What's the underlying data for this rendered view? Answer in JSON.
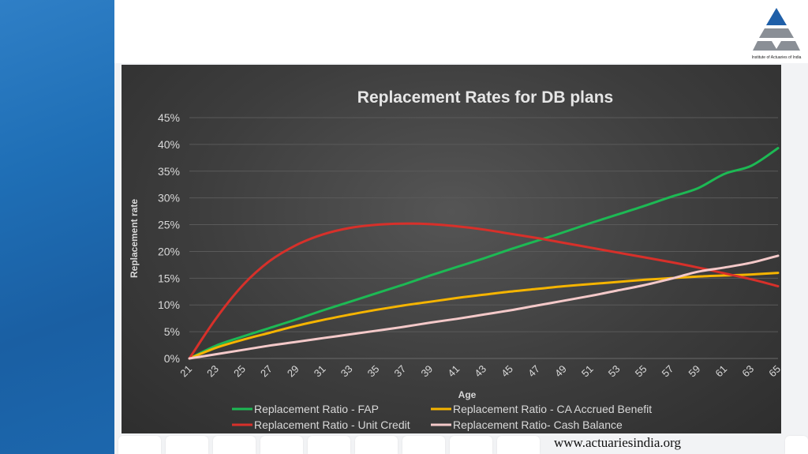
{
  "footer": {
    "url": "www.actuariesindia.org"
  },
  "logo": {
    "caption": "Institute of Actuaries of India",
    "colors": {
      "top": "#1f5fa8",
      "bottom": "#8a8f96"
    }
  },
  "theme": {
    "band": "#1f6fb6",
    "panel": "#3d3d3d",
    "grid": "#5a5a5a",
    "text": "#d9d9d9"
  },
  "chart_data": {
    "type": "line",
    "title": "Replacement  Rates for DB plans",
    "xlabel": "Age",
    "ylabel": "Replacement  rate",
    "ylim": [
      0,
      0.45
    ],
    "y_ticks": [
      "0%",
      "5%",
      "10%",
      "15%",
      "20%",
      "25%",
      "30%",
      "35%",
      "40%",
      "45%"
    ],
    "grid": true,
    "legend": "bottom",
    "x": [
      21,
      23,
      25,
      27,
      29,
      31,
      33,
      35,
      37,
      39,
      41,
      43,
      45,
      47,
      49,
      51,
      53,
      55,
      57,
      59,
      61,
      63,
      65
    ],
    "series": [
      {
        "name": "Replacement Ratio - FAP",
        "color": "#1db954",
        "values": [
          0.0,
          0.024,
          0.041,
          0.057,
          0.073,
          0.09,
          0.106,
          0.122,
          0.138,
          0.155,
          0.171,
          0.187,
          0.204,
          0.22,
          0.236,
          0.253,
          0.269,
          0.285,
          0.302,
          0.318,
          0.345,
          0.36,
          0.393
        ]
      },
      {
        "name": "Replacement Ratio - CA Accrued Benefit",
        "color": "#f5b400",
        "values": [
          0.0,
          0.02,
          0.035,
          0.048,
          0.061,
          0.072,
          0.082,
          0.091,
          0.099,
          0.106,
          0.113,
          0.119,
          0.125,
          0.13,
          0.135,
          0.139,
          0.143,
          0.147,
          0.15,
          0.153,
          0.155,
          0.157,
          0.16
        ]
      },
      {
        "name": "Replacement Ratio - Unit Credit",
        "color": "#d7302a",
        "values": [
          0.0,
          0.075,
          0.137,
          0.182,
          0.212,
          0.232,
          0.244,
          0.25,
          0.252,
          0.251,
          0.247,
          0.241,
          0.233,
          0.225,
          0.216,
          0.207,
          0.198,
          0.189,
          0.18,
          0.17,
          0.159,
          0.148,
          0.135
        ]
      },
      {
        "name": "Replacement Ratio- Cash Balance",
        "color": "#f4c9c9",
        "values": [
          0.0,
          0.008,
          0.016,
          0.024,
          0.031,
          0.038,
          0.045,
          0.052,
          0.059,
          0.067,
          0.074,
          0.082,
          0.09,
          0.099,
          0.108,
          0.117,
          0.127,
          0.137,
          0.149,
          0.162,
          0.17,
          0.179,
          0.192
        ]
      }
    ]
  }
}
